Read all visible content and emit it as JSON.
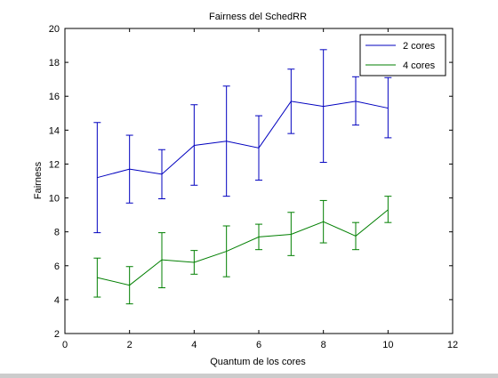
{
  "chart_data": {
    "type": "line",
    "title": "Fairness del SchedRR",
    "xlabel": "Quantum de los cores",
    "ylabel": "Fairness",
    "xlim": [
      0,
      12
    ],
    "ylim": [
      2,
      20
    ],
    "xticks": [
      0,
      2,
      4,
      6,
      8,
      10,
      12
    ],
    "yticks": [
      2,
      4,
      6,
      8,
      10,
      12,
      14,
      16,
      18,
      20
    ],
    "grid": false,
    "legend_position": "top-right",
    "x": [
      1,
      2,
      3,
      4,
      5,
      6,
      7,
      8,
      9,
      10
    ],
    "series": [
      {
        "name": "2 cores",
        "color": "#0000bf",
        "values": [
          11.2,
          11.7,
          11.4,
          13.1,
          13.35,
          12.95,
          15.7,
          15.4,
          15.7,
          15.3
        ],
        "err_low": [
          7.95,
          9.7,
          9.95,
          10.75,
          10.1,
          11.05,
          13.8,
          12.1,
          14.3,
          13.55
        ],
        "err_high": [
          14.45,
          13.7,
          12.85,
          15.5,
          16.6,
          14.85,
          17.6,
          18.75,
          17.15,
          17.1
        ]
      },
      {
        "name": "4 cores",
        "color": "#007f00",
        "values": [
          5.3,
          4.85,
          6.35,
          6.2,
          6.85,
          7.7,
          7.85,
          8.6,
          7.75,
          9.3
        ],
        "err_low": [
          4.15,
          3.75,
          4.7,
          5.5,
          5.35,
          6.95,
          6.6,
          7.35,
          6.95,
          8.55
        ],
        "err_high": [
          6.45,
          5.95,
          7.95,
          6.9,
          8.35,
          8.45,
          9.15,
          9.85,
          8.55,
          10.1
        ]
      }
    ]
  }
}
